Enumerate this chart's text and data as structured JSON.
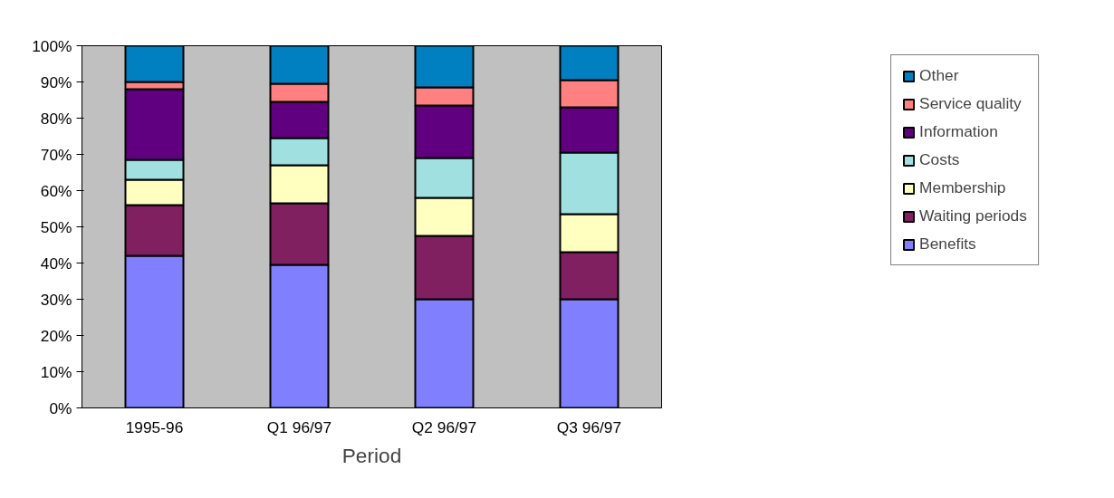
{
  "chart_data": {
    "type": "bar",
    "stacked": true,
    "xlabel": "Period",
    "categories": [
      "1995-96",
      "Q1 96/97",
      "Q2 96/97",
      "Q3 96/97"
    ],
    "series": [
      {
        "name": "Benefits",
        "color": "#8080ff",
        "values": [
          42,
          39.5,
          30,
          30
        ]
      },
      {
        "name": "Waiting periods",
        "color": "#802060",
        "values": [
          14,
          17,
          17.5,
          13
        ]
      },
      {
        "name": "Membership",
        "color": "#ffffc0",
        "values": [
          7,
          10.5,
          10.5,
          10.5
        ]
      },
      {
        "name": "Costs",
        "color": "#a0e0e0",
        "values": [
          5.5,
          7.5,
          11,
          17
        ]
      },
      {
        "name": "Information",
        "color": "#600080",
        "values": [
          19.5,
          10,
          14.5,
          12.5
        ]
      },
      {
        "name": "Service quality",
        "color": "#ff8080",
        "values": [
          2,
          5,
          5,
          7.5
        ]
      },
      {
        "name": "Other",
        "color": "#0080c0",
        "values": [
          10,
          10.5,
          11.5,
          9.5
        ]
      }
    ],
    "ylim": [
      0,
      100
    ],
    "yticks": [
      {
        "value": 0,
        "label": "0%"
      },
      {
        "value": 10,
        "label": "10%"
      },
      {
        "value": 20,
        "label": "20%"
      },
      {
        "value": 30,
        "label": "30%"
      },
      {
        "value": 40,
        "label": "40%"
      },
      {
        "value": 50,
        "label": "50%"
      },
      {
        "value": 60,
        "label": "60%"
      },
      {
        "value": 70,
        "label": "70%"
      },
      {
        "value": 80,
        "label": "80%"
      },
      {
        "value": 90,
        "label": "90%"
      },
      {
        "value": 100,
        "label": "100%"
      }
    ],
    "grid": false,
    "legend": "right"
  }
}
